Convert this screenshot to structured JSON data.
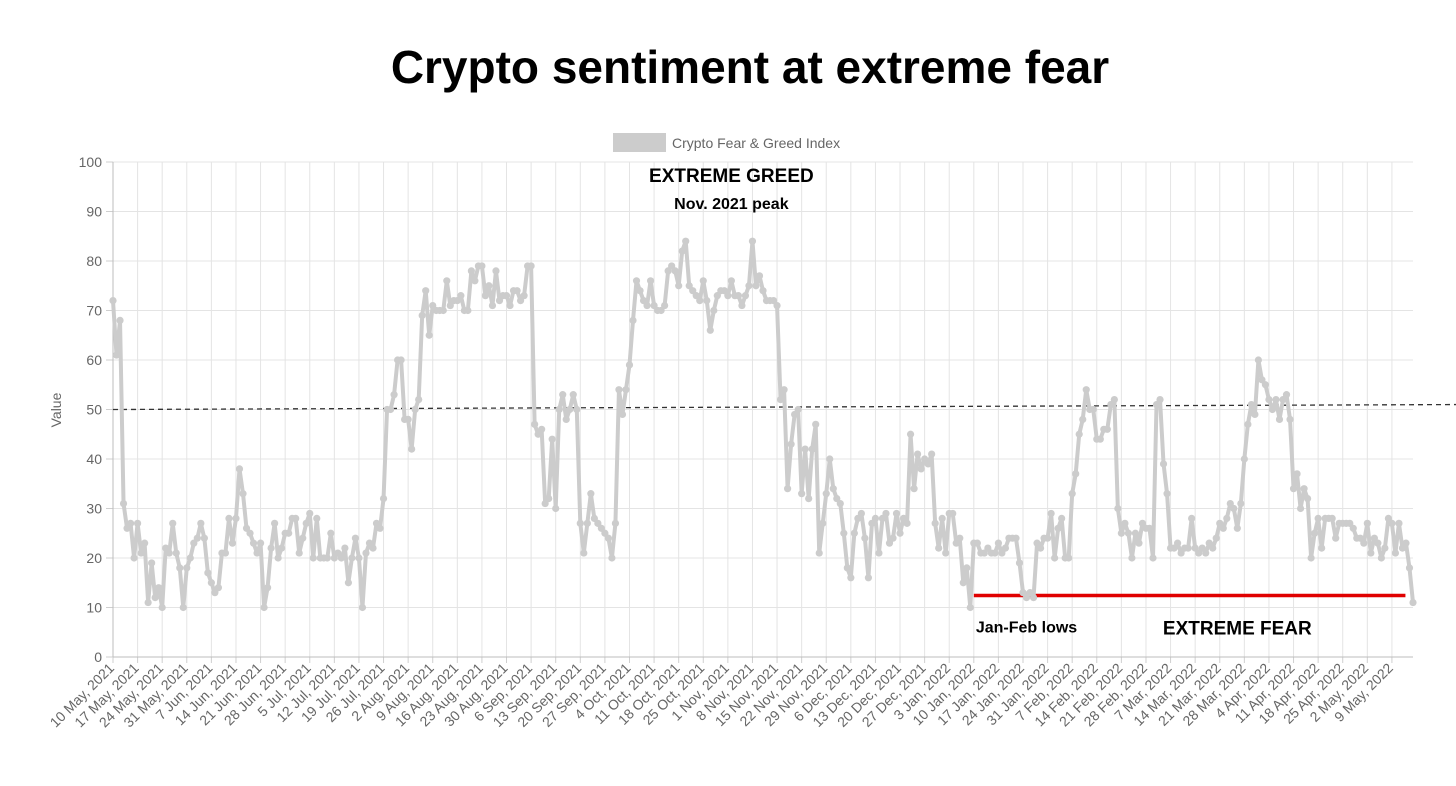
{
  "chart_data": {
    "type": "line",
    "title": "Crypto sentiment at extreme fear",
    "xlabel": "",
    "ylabel": "Value",
    "ylim": [
      0,
      100
    ],
    "yticks": [
      0,
      10,
      20,
      30,
      40,
      50,
      60,
      70,
      80,
      90,
      100
    ],
    "grid": true,
    "legend_position": "top",
    "series": [
      {
        "name": "Crypto Fear & Greed Index",
        "color": "#cccccc",
        "x_start": "2021-05-10",
        "values": [
          72,
          61,
          68,
          31,
          26,
          27,
          20,
          27,
          21,
          23,
          11,
          19,
          12,
          14,
          10,
          22,
          21,
          27,
          21,
          18,
          10,
          18,
          20,
          23,
          24,
          27,
          24,
          17,
          15,
          13,
          14,
          21,
          21,
          28,
          23,
          28,
          38,
          33,
          26,
          25,
          23,
          21,
          23,
          10,
          14,
          22,
          27,
          20,
          22,
          25,
          25,
          28,
          28,
          21,
          24,
          27,
          29,
          20,
          28,
          20,
          20,
          20,
          25,
          20,
          21,
          20,
          22,
          15,
          20,
          24,
          20,
          10,
          21,
          23,
          22,
          27,
          26,
          32,
          50,
          50,
          53,
          60,
          60,
          48,
          48,
          42,
          50,
          52,
          69,
          74,
          65,
          71,
          70,
          70,
          70,
          76,
          71,
          72,
          72,
          73,
          70,
          70,
          78,
          76,
          79,
          79,
          73,
          75,
          71,
          78,
          72,
          73,
          73,
          71,
          74,
          74,
          72,
          73,
          79,
          79,
          47,
          45,
          46,
          31,
          32,
          44,
          30,
          50,
          53,
          48,
          50,
          53,
          50,
          27,
          21,
          27,
          33,
          28,
          27,
          26,
          25,
          24,
          20,
          27,
          54,
          49,
          54,
          59,
          68,
          76,
          74,
          72,
          71,
          76,
          71,
          70,
          70,
          71,
          78,
          79,
          78,
          75,
          82,
          84,
          75,
          74,
          73,
          72,
          76,
          72,
          66,
          70,
          73,
          74,
          74,
          73,
          76,
          73,
          73,
          71,
          73,
          75,
          84,
          75,
          77,
          74,
          72,
          72,
          72,
          71,
          52,
          54,
          34,
          43,
          49,
          50,
          33,
          42,
          32,
          42,
          47,
          21,
          27,
          33,
          40,
          34,
          32,
          31,
          25,
          18,
          16,
          25,
          28,
          29,
          24,
          16,
          27,
          28,
          21,
          28,
          29,
          23,
          24,
          29,
          25,
          28,
          27,
          45,
          34,
          41,
          38,
          40,
          39,
          41,
          27,
          22,
          28,
          21,
          29,
          29,
          23,
          24,
          15,
          18,
          10,
          23,
          23,
          21,
          21,
          22,
          21,
          21,
          23,
          21,
          22,
          24,
          24,
          24,
          19,
          13,
          12,
          13,
          12,
          23,
          22,
          24,
          24,
          29,
          20,
          26,
          28,
          20,
          20,
          33,
          37,
          45,
          48,
          54,
          50,
          50,
          44,
          44,
          46,
          46,
          51,
          52,
          30,
          25,
          27,
          25,
          20,
          25,
          23,
          27,
          26,
          26,
          20,
          51,
          52,
          39,
          33,
          22,
          22,
          23,
          21,
          22,
          22,
          28,
          22,
          21,
          22,
          21,
          23,
          22,
          24,
          27,
          26,
          28,
          31,
          30,
          26,
          31,
          40,
          47,
          51,
          49,
          60,
          56,
          55,
          52,
          50,
          52,
          48,
          52,
          53,
          48,
          34,
          37,
          30,
          34,
          32,
          20,
          25,
          28,
          22,
          28,
          28,
          28,
          24,
          27,
          27,
          27,
          27,
          26,
          24,
          24,
          23,
          27,
          21,
          24,
          23,
          20,
          22,
          28,
          27,
          21,
          27,
          22,
          23,
          18,
          11
        ],
        "x_labels": [
          "10 May, 2021",
          "17 May, 2021",
          "24 May, 2021",
          "31 May, 2021",
          "7 Jun, 2021",
          "14 Jun, 2021",
          "21 Jun, 2021",
          "28 Jun, 2021",
          "5 Jul, 2021",
          "12 Jul, 2021",
          "19 Jul, 2021",
          "26 Jul, 2021",
          "2 Aug, 2021",
          "9 Aug, 2021",
          "16 Aug, 2021",
          "23 Aug, 2021",
          "30 Aug, 2021",
          "6 Sep, 2021",
          "13 Sep, 2021",
          "20 Sep, 2021",
          "27 Sep, 2021",
          "4 Oct, 2021",
          "11 Oct, 2021",
          "18 Oct, 2021",
          "25 Oct, 2021",
          "1 Nov, 2021",
          "8 Nov, 2021",
          "15 Nov, 2021",
          "22 Nov, 2021",
          "29 Nov, 2021",
          "6 Dec, 2021",
          "13 Dec, 2021",
          "20 Dec, 2021",
          "27 Dec, 2021",
          "3 Jan, 2022",
          "10 Jan, 2022",
          "17 Jan, 2022",
          "24 Jan, 2022",
          "31 Jan, 2022",
          "7 Feb, 2022",
          "14 Feb, 2022",
          "21 Feb, 2022",
          "28 Feb, 2022",
          "7 Mar, 2022",
          "14 Mar, 2022",
          "21 Mar, 2022",
          "28 Mar, 2022",
          "4 Apr, 2022",
          "11 Apr, 2022",
          "18 Apr, 2022",
          "25 Apr, 2022",
          "2 May, 2022",
          "9 May, 2022"
        ]
      }
    ],
    "reference_lines": [
      {
        "style": "dashed",
        "color": "#333333",
        "y_start": 50,
        "y_end": 51
      },
      {
        "style": "solid",
        "color": "#e00000",
        "y": 11,
        "x_from": "2022-01-10",
        "x_to": "2022-05-10"
      }
    ],
    "annotations": [
      {
        "text": "EXTREME GREED",
        "size": "large",
        "x": "2021-11-02",
        "y": 96
      },
      {
        "text": "Nov. 2021 peak",
        "size": "small",
        "x": "2021-11-02",
        "y": 90.5
      },
      {
        "text": "Jan-Feb lows",
        "size": "small",
        "x": "2022-01-25",
        "y": 5
      },
      {
        "text": "EXTREME FEAR",
        "size": "large",
        "x": "2022-03-26",
        "y": 4.5
      }
    ]
  }
}
